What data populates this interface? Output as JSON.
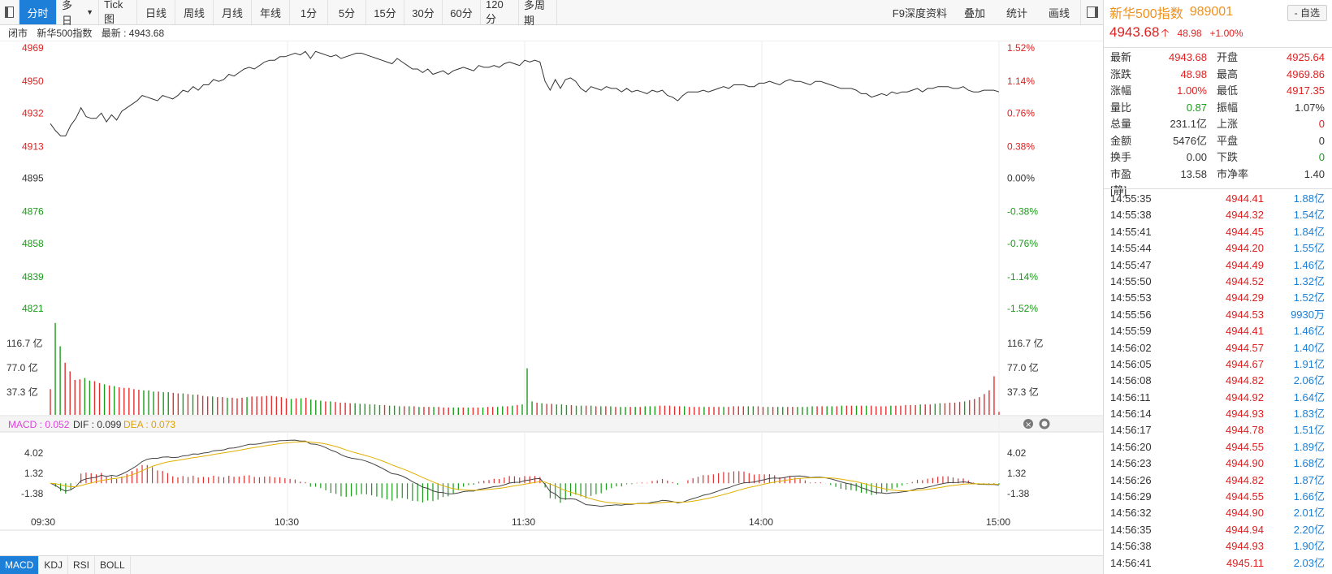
{
  "toolbar": {
    "tabs": [
      "分时",
      "多日",
      "Tick图",
      "日线",
      "周线",
      "月线",
      "年线",
      "1分",
      "5分",
      "15分",
      "30分",
      "60分",
      "120分",
      "多周期"
    ],
    "active": 0,
    "right": [
      "F9深度资料",
      "叠加",
      "统计",
      "画线"
    ]
  },
  "info": {
    "status": "闭市",
    "name": "新华500指数",
    "latest_label": "最新",
    "latest": "4943.68"
  },
  "header": {
    "name": "新华500指数",
    "code": "989001",
    "price": "4943.68",
    "change": "48.98",
    "pct": "+1.00%",
    "add_label": "- 自选"
  },
  "quote": [
    {
      "k": "最新",
      "v": "4943.68",
      "vc": "red",
      "k2": "开盘",
      "v2": "4925.64",
      "v2c": "red"
    },
    {
      "k": "涨跌",
      "v": "48.98",
      "vc": "red",
      "k2": "最高",
      "v2": "4969.86",
      "v2c": "red"
    },
    {
      "k": "涨幅",
      "v": "1.00%",
      "vc": "red",
      "k2": "最低",
      "v2": "4917.35",
      "v2c": "red"
    },
    {
      "k": "量比",
      "v": "0.87",
      "vc": "green",
      "k2": "振幅",
      "v2": "1.07%",
      "v2c": "blk"
    },
    {
      "k": "总量",
      "v": "231.1亿",
      "vc": "blk",
      "k2": "上涨",
      "v2": "0",
      "v2c": "red"
    },
    {
      "k": "金额",
      "v": "5476亿",
      "vc": "blk",
      "k2": "平盘",
      "v2": "0",
      "v2c": "blk"
    },
    {
      "k": "换手",
      "v": "0.00",
      "vc": "blk",
      "k2": "下跌",
      "v2": "0",
      "v2c": "green"
    },
    {
      "k": "市盈[静]",
      "v": "13.58",
      "vc": "blk",
      "k2": "市净率",
      "v2": "1.40",
      "v2c": "blk"
    }
  ],
  "ticks": [
    [
      "14:55:35",
      "4944.41",
      "1.88亿"
    ],
    [
      "14:55:38",
      "4944.32",
      "1.54亿"
    ],
    [
      "14:55:41",
      "4944.45",
      "1.84亿"
    ],
    [
      "14:55:44",
      "4944.20",
      "1.55亿"
    ],
    [
      "14:55:47",
      "4944.49",
      "1.46亿"
    ],
    [
      "14:55:50",
      "4944.52",
      "1.32亿"
    ],
    [
      "14:55:53",
      "4944.29",
      "1.52亿"
    ],
    [
      "14:55:56",
      "4944.53",
      "9930万"
    ],
    [
      "14:55:59",
      "4944.41",
      "1.46亿"
    ],
    [
      "14:56:02",
      "4944.57",
      "1.40亿"
    ],
    [
      "14:56:05",
      "4944.67",
      "1.91亿"
    ],
    [
      "14:56:08",
      "4944.82",
      "2.06亿"
    ],
    [
      "14:56:11",
      "4944.92",
      "1.64亿"
    ],
    [
      "14:56:14",
      "4944.93",
      "1.83亿"
    ],
    [
      "14:56:17",
      "4944.78",
      "1.51亿"
    ],
    [
      "14:56:20",
      "4944.55",
      "1.89亿"
    ],
    [
      "14:56:23",
      "4944.90",
      "1.68亿"
    ],
    [
      "14:56:26",
      "4944.82",
      "1.87亿"
    ],
    [
      "14:56:29",
      "4944.55",
      "1.66亿"
    ],
    [
      "14:56:32",
      "4944.90",
      "2.01亿"
    ],
    [
      "14:56:35",
      "4944.94",
      "2.20亿"
    ],
    [
      "14:56:38",
      "4944.93",
      "1.90亿"
    ],
    [
      "14:56:41",
      "4945.11",
      "2.03亿"
    ]
  ],
  "indicator_tabs": [
    "MACD",
    "KDJ",
    "RSI",
    "BOLL"
  ],
  "chart_data": {
    "type": "line",
    "price_left_ticks": [
      "4969",
      "4950",
      "4932",
      "4913",
      "4895",
      "4876",
      "4858",
      "4839",
      "4821"
    ],
    "price_right_ticks": [
      "1.52%",
      "1.14%",
      "0.76%",
      "0.38%",
      "0.00%",
      "-0.38%",
      "-0.76%",
      "-1.14%",
      "-1.52%"
    ],
    "price_ylim": [
      4821,
      4969
    ],
    "prev_close": 4895,
    "price_series": [
      4926,
      4922,
      4919,
      4919,
      4925,
      4929,
      4935,
      4930,
      4929,
      4929,
      4932,
      4927,
      4931,
      4928,
      4933,
      4935,
      4937,
      4939,
      4942,
      4941,
      4940,
      4939,
      4942,
      4941,
      4940,
      4942,
      4945,
      4944,
      4947,
      4945,
      4948,
      4948,
      4951,
      4950,
      4951,
      4954,
      4953,
      4955,
      4957,
      4958,
      4957,
      4959,
      4961,
      4962,
      4962,
      4964,
      4964,
      4965,
      4966,
      4965,
      4967,
      4963,
      4967,
      4966,
      4965,
      4964,
      4965,
      4963,
      4964,
      4965,
      4966,
      4966,
      4965,
      4964,
      4963,
      4962,
      4961,
      4960,
      4963,
      4961,
      4959,
      4957,
      4957,
      4955,
      4957,
      4954,
      4955,
      4956,
      4954,
      4956,
      4957,
      4958,
      4957,
      4956,
      4959,
      4958,
      4958,
      4959,
      4958,
      4960,
      4961,
      4960,
      4959,
      4962,
      4961,
      4962,
      4961,
      4950,
      4945,
      4951,
      4946,
      4951,
      4952,
      4950,
      4946,
      4944,
      4947,
      4946,
      4945,
      4947,
      4946,
      4946,
      4944,
      4946,
      4944,
      4945,
      4944,
      4943,
      4945,
      4944,
      4945,
      4942,
      4941,
      4939,
      4942,
      4944,
      4944,
      4944,
      4945,
      4944,
      4945,
      4946,
      4947,
      4946,
      4948,
      4948,
      4948,
      4947,
      4947,
      4949,
      4949,
      4950,
      4949,
      4948,
      4950,
      4951,
      4950,
      4950,
      4949,
      4948,
      4950,
      4950,
      4949,
      4948,
      4947,
      4946,
      4946,
      4946,
      4945,
      4943,
      4943,
      4941,
      4942,
      4943,
      4942,
      4944,
      4943,
      4944,
      4944,
      4945,
      4946,
      4944,
      4946,
      4946,
      4947,
      4947,
      4947,
      4946,
      4946,
      4947,
      4945,
      4944,
      4944,
      4945,
      4945,
      4945,
      4944
    ],
    "volume_ticks": [
      "116.7 亿",
      "77.0 亿",
      "37.3 亿"
    ],
    "volume_max": 155,
    "volume_series": [
      42,
      150,
      112,
      85,
      71,
      57,
      58,
      60,
      56,
      55,
      52,
      50,
      48,
      47,
      45,
      44,
      44,
      42,
      41,
      40,
      40,
      38,
      38,
      37,
      37,
      36,
      35,
      35,
      34,
      33,
      33,
      31,
      30,
      30,
      29,
      29,
      28,
      28,
      27,
      28,
      29,
      30,
      30,
      30,
      31,
      31,
      30,
      29,
      27,
      26,
      27,
      27,
      28,
      25,
      24,
      23,
      22,
      22,
      21,
      20,
      20,
      19,
      19,
      18,
      18,
      17,
      17,
      16,
      16,
      15,
      15,
      14,
      14,
      14,
      14,
      13,
      13,
      13,
      13,
      13,
      12,
      12,
      12,
      12,
      12,
      12,
      12,
      12,
      12,
      13,
      13,
      13,
      14,
      14,
      15,
      16,
      17,
      76,
      22,
      20,
      19,
      18,
      18,
      17,
      17,
      16,
      16,
      15,
      15,
      15,
      15,
      14,
      14,
      14,
      14,
      13,
      13,
      13,
      13,
      13,
      13,
      14,
      14,
      14,
      15,
      15,
      15,
      14,
      14,
      14,
      13,
      13,
      13,
      13,
      13,
      13,
      13,
      13,
      13,
      14,
      14,
      14,
      14,
      14,
      14,
      13,
      13,
      13,
      13,
      13,
      13,
      13,
      13,
      13,
      13,
      14,
      14,
      14,
      14,
      14,
      14,
      15,
      15,
      15,
      15,
      15,
      15,
      15,
      14,
      14,
      14,
      15,
      15,
      15,
      16,
      16,
      16,
      17,
      17,
      17,
      18,
      19,
      19,
      20,
      20,
      21,
      22,
      24,
      26,
      29,
      34,
      40,
      63,
      5
    ],
    "time_labels": [
      "09:30",
      "10:30",
      "11:30",
      "14:00",
      "15:00"
    ],
    "macd": {
      "MACD": "0.052",
      "DIF": "0.099",
      "DEA": "0.073",
      "ticks": [
        "4.02",
        "1.32",
        "-1.38"
      ]
    }
  }
}
